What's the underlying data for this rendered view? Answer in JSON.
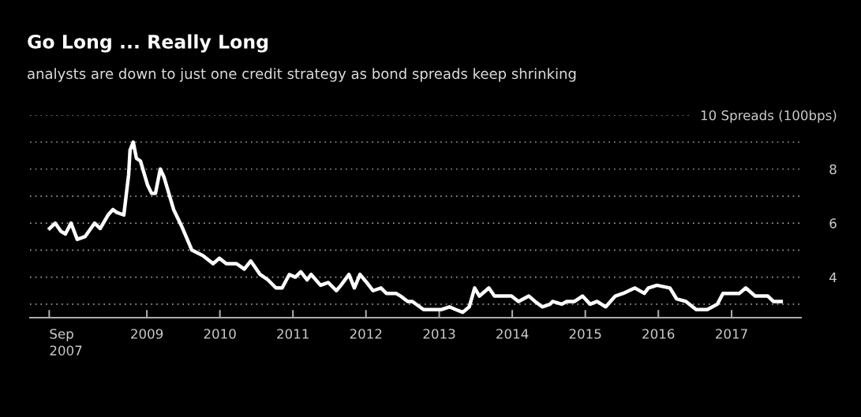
{
  "chart_data": {
    "type": "line",
    "title": "Go Long ... Really Long",
    "subtitle": "analysts are down to just one credit strategy as bond spreads keep shrinking",
    "x": [
      "2007-09-03",
      "2007-10-01",
      "2007-10-29",
      "2007-11-21",
      "2007-12-19",
      "2008-01-19",
      "2008-02-27",
      "2008-04-15",
      "2008-05-13",
      "2008-06-21",
      "2008-07-15",
      "2008-08-03",
      "2008-09-08",
      "2008-10-02",
      "2008-10-09",
      "2008-10-25",
      "2008-11-10",
      "2008-11-30",
      "2009-01-05",
      "2009-01-25",
      "2009-02-13",
      "2009-03-09",
      "2009-03-28",
      "2009-05-15",
      "2009-06-23",
      "2009-08-14",
      "2009-10-08",
      "2009-11-28",
      "2009-12-29",
      "2010-02-02",
      "2010-03-25",
      "2010-05-03",
      "2010-06-04",
      "2010-07-21",
      "2010-08-29",
      "2010-10-08",
      "2010-11-08",
      "2010-12-14",
      "2011-01-13",
      "2011-02-09",
      "2011-03-13",
      "2011-04-02",
      "2011-05-19",
      "2011-06-27",
      "2011-08-06",
      "2011-08-29",
      "2011-10-08",
      "2011-11-04",
      "2011-12-02",
      "2012-01-05",
      "2012-02-05",
      "2012-03-16",
      "2012-04-12",
      "2012-05-30",
      "2012-06-22",
      "2012-07-28",
      "2012-08-20",
      "2012-10-15",
      "2012-12-05",
      "2013-01-13",
      "2013-02-21",
      "2013-03-25",
      "2013-04-29",
      "2013-05-31",
      "2013-06-27",
      "2013-07-21",
      "2013-09-06",
      "2013-10-04",
      "2013-11-24",
      "2013-12-28",
      "2014-02-01",
      "2014-03-25",
      "2014-04-25",
      "2014-05-31",
      "2014-07-09",
      "2014-07-21",
      "2014-09-06",
      "2014-09-30",
      "2014-11-08",
      "2014-12-18",
      "2015-01-25",
      "2015-03-01",
      "2015-04-13",
      "2015-05-31",
      "2015-07-09",
      "2015-09-06",
      "2015-10-23",
      "2015-11-12",
      "2015-12-25",
      "2016-02-28",
      "2016-04-01",
      "2016-05-18",
      "2016-07-08",
      "2016-09-01",
      "2016-10-22",
      "2016-11-19",
      "2016-12-20",
      "2017-02-09",
      "2017-03-13",
      "2017-04-29",
      "2017-07-01",
      "2017-07-29",
      "2017-09-06"
    ],
    "series": [
      {
        "color": "#ffffff",
        "values": [
          5.8,
          6.0,
          5.7,
          5.6,
          6.0,
          5.4,
          5.5,
          6.0,
          5.8,
          6.3,
          6.5,
          6.4,
          6.3,
          7.8,
          8.7,
          9.0,
          8.4,
          8.3,
          7.4,
          7.1,
          7.1,
          8.0,
          7.7,
          6.5,
          5.9,
          5.0,
          4.8,
          4.5,
          4.7,
          4.5,
          4.5,
          4.3,
          4.6,
          4.1,
          3.9,
          3.6,
          3.6,
          4.1,
          4.0,
          4.2,
          3.9,
          4.1,
          3.7,
          3.8,
          3.5,
          3.7,
          4.1,
          3.6,
          4.1,
          3.8,
          3.5,
          3.6,
          3.4,
          3.4,
          3.3,
          3.1,
          3.1,
          2.8,
          2.8,
          2.8,
          2.9,
          2.8,
          2.7,
          2.9,
          3.6,
          3.3,
          3.6,
          3.3,
          3.3,
          3.3,
          3.1,
          3.3,
          3.1,
          2.9,
          3.0,
          3.1,
          3.0,
          3.1,
          3.1,
          3.3,
          3.0,
          3.1,
          2.9,
          3.3,
          3.4,
          3.6,
          3.4,
          3.6,
          3.7,
          3.6,
          3.2,
          3.1,
          2.8,
          2.8,
          3.0,
          3.4,
          3.4,
          3.4,
          3.6,
          3.3,
          3.3,
          3.1,
          3.1
        ]
      }
    ],
    "xlim": [
      "2007-05-28",
      "2017-12-14"
    ],
    "xticks": [
      {
        "value": "2007-09-01",
        "label": "Sep\n2007"
      },
      {
        "value": "2009-01-01",
        "label": "2009"
      },
      {
        "value": "2010-01-01",
        "label": "2010"
      },
      {
        "value": "2011-01-01",
        "label": "2011"
      },
      {
        "value": "2012-01-01",
        "label": "2012"
      },
      {
        "value": "2013-01-01",
        "label": "2013"
      },
      {
        "value": "2014-01-01",
        "label": "2014"
      },
      {
        "value": "2015-01-01",
        "label": "2015"
      },
      {
        "value": "2016-01-01",
        "label": "2016"
      },
      {
        "value": "2017-01-01",
        "label": "2017"
      }
    ],
    "ylim": [
      2.5,
      10
    ],
    "yticks": [
      {
        "value": 3,
        "label": null
      },
      4,
      {
        "value": 5,
        "label": null
      },
      6,
      {
        "value": 7,
        "label": null
      },
      8,
      {
        "value": 9,
        "label": null
      },
      {
        "value": 10,
        "label": "10 Spreads (100bps)"
      }
    ],
    "grid": "y",
    "legend": false,
    "marker": "none",
    "line_style": "solid"
  }
}
